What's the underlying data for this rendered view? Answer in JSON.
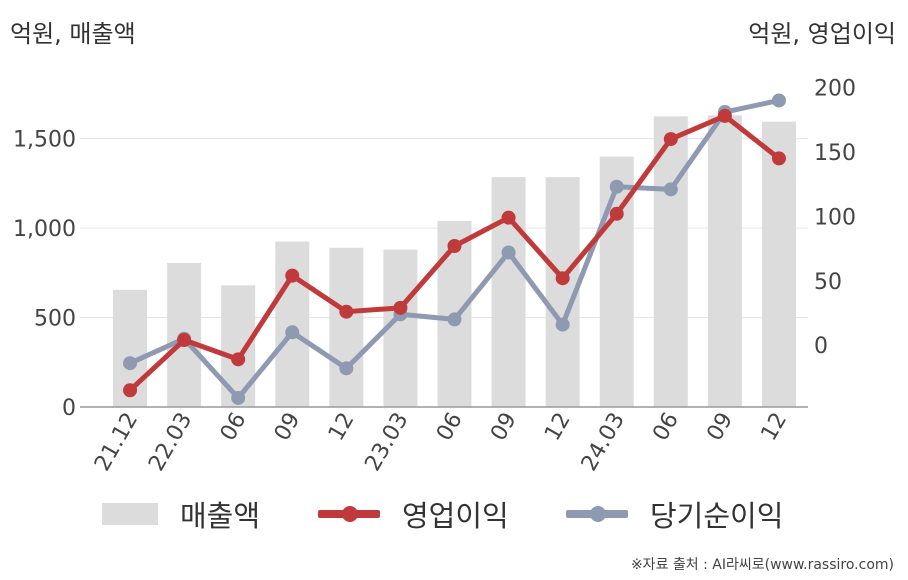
{
  "units": {
    "left": "억원, 매출액",
    "right": "억원, 영업이익"
  },
  "source": "※자료 출처 : AI라씨로(www.rassiro.com)",
  "colors": {
    "bar": "#dcdcdc",
    "operating_profit": "#c0393b",
    "net_profit": "#8e9ab2",
    "grid": "#e6e6e6",
    "axis": "#999999",
    "text": "#444444"
  },
  "chart_data": {
    "type": "bar+line",
    "categories": [
      "21.12",
      "22.03",
      "06",
      "09",
      "12",
      "23.03",
      "06",
      "09",
      "12",
      "24.03",
      "06",
      "09",
      "12"
    ],
    "y_left": {
      "ticks": [
        0,
        500,
        1000,
        1500
      ],
      "range": [
        0,
        1800
      ]
    },
    "y_right": {
      "ticks": [
        0,
        50,
        100,
        150,
        200
      ],
      "range": [
        -48,
        202
      ]
    },
    "series": [
      {
        "name": "매출액",
        "type": "bar",
        "axis": "left",
        "values": [
          655,
          805,
          680,
          925,
          890,
          880,
          1040,
          1285,
          1285,
          1400,
          1625,
          1630,
          1595
        ]
      },
      {
        "name": "영업이익",
        "type": "line",
        "axis": "right",
        "values": [
          -35,
          4,
          -11,
          54,
          26,
          29,
          77,
          99,
          52,
          102,
          160,
          178,
          145
        ]
      },
      {
        "name": "당기순이익",
        "type": "line",
        "axis": "right",
        "values": [
          -14,
          5,
          -41,
          10,
          -18,
          24,
          20,
          72,
          16,
          123,
          121,
          181,
          190
        ]
      }
    ],
    "legend": [
      "매출액",
      "영업이익",
      "당기순이익"
    ],
    "legend_position": "bottom",
    "grid": true
  }
}
